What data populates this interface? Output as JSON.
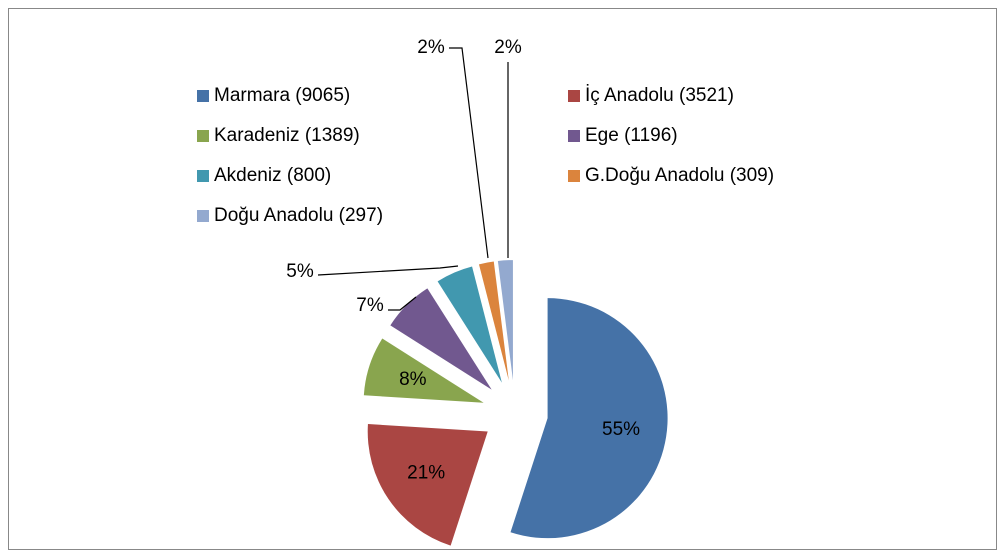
{
  "chart_data": {
    "type": "pie",
    "categories": [
      "Marmara (9065)",
      "İç Anadolu (3521)",
      "Karadeniz (1389)",
      "Ege (1196)",
      "Akdeniz (800)",
      "G.Doğu Anadolu (309)",
      "Doğu Anadolu (297)"
    ],
    "values": [
      55,
      21,
      8,
      7,
      5,
      2,
      2
    ],
    "value_labels": [
      "55%",
      "21%",
      "8%",
      "7%",
      "5%",
      "2%",
      "2%"
    ],
    "colors": [
      "#4572a7",
      "#aa4643",
      "#89a54e",
      "#71588f",
      "#4198af",
      "#db843d",
      "#93a9cf"
    ],
    "exploded": true,
    "legend": "top"
  }
}
